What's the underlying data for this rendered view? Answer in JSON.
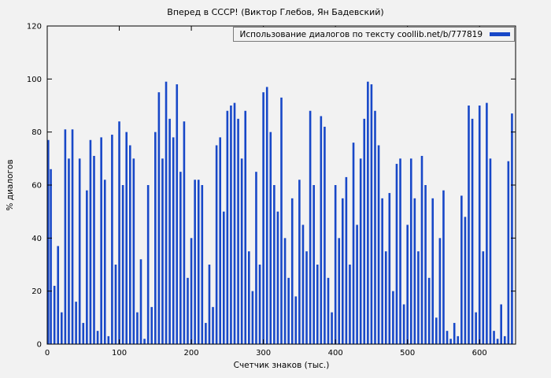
{
  "accent_color": "#1848c8",
  "chart_data": {
    "type": "bar",
    "title": "Вперед в СССР! (Виктор Глебов, Ян Бадевский)",
    "xlabel": "Счетчик знаков (тыс.)",
    "ylabel": "% диалогов",
    "legend": [
      "Использование диалогов по тексту coollib.net/b/777819"
    ],
    "legend_position": "top-right",
    "grid": false,
    "bar_color": "#1848c8",
    "xlim": [
      0,
      650
    ],
    "ylim": [
      0,
      120
    ],
    "x_ticks": [
      0,
      100,
      200,
      300,
      400,
      500,
      600
    ],
    "y_ticks": [
      0,
      20,
      40,
      60,
      80,
      100,
      120
    ],
    "x_start": 0,
    "x_step": 5,
    "values": [
      77,
      66,
      22,
      37,
      12,
      81,
      70,
      81,
      16,
      70,
      8,
      58,
      77,
      71,
      5,
      78,
      62,
      3,
      79,
      30,
      84,
      60,
      80,
      75,
      70,
      12,
      32,
      2,
      60,
      14,
      80,
      95,
      70,
      99,
      85,
      78,
      98,
      65,
      84,
      25,
      40,
      62,
      62,
      60,
      8,
      30,
      14,
      75,
      78,
      50,
      88,
      90,
      91,
      85,
      70,
      88,
      35,
      20,
      65,
      30,
      95,
      97,
      80,
      60,
      50,
      93,
      40,
      25,
      55,
      18,
      62,
      45,
      35,
      88,
      60,
      30,
      86,
      82,
      25,
      12,
      60,
      40,
      55,
      63,
      30,
      76,
      45,
      70,
      85,
      99,
      98,
      88,
      75,
      55,
      35,
      57,
      20,
      68,
      70,
      15,
      45,
      70,
      55,
      35,
      71,
      60,
      25,
      55,
      10,
      40,
      58,
      5,
      2,
      8,
      3,
      56,
      48,
      90,
      85,
      12,
      90,
      35,
      91,
      70,
      5,
      2,
      15,
      3,
      69,
      87
    ]
  }
}
